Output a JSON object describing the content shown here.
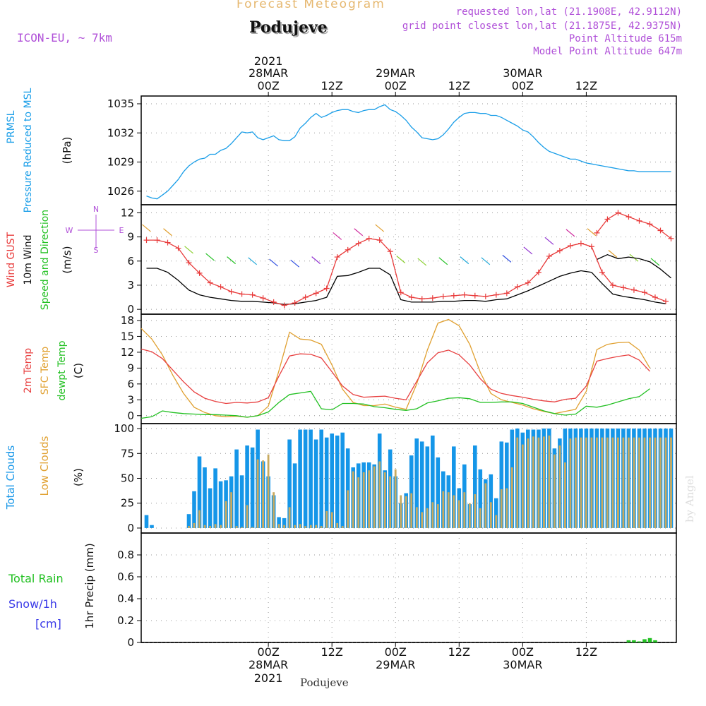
{
  "header": {
    "product": "Forecast Meteogram",
    "location": "Podujeve",
    "model": "ICON-EU, ~ 7km",
    "requested": "requested lon,lat (21.1908E, 42.9112N)",
    "grid_point": "grid point closest lon,lat (21.1875E, 42.9375N)",
    "point_altitude": "Point Altitude 615m",
    "model_altitude": "Model Point Altitude 647m",
    "watermark": "by Angel",
    "footer_location": "Podujeve"
  },
  "colors": {
    "pressure": "#1a9ee8",
    "gust": "#e83a3a",
    "wind": "#000000",
    "temp2m": "#e84040",
    "sfc": "#e0a030",
    "dewpt": "#22c022",
    "total_clouds": "#1596e8",
    "low_clouds": "#c8aa60",
    "rain": "#22c022",
    "snow": "#3a3ae8",
    "purple": "#b050d8"
  },
  "time_axis": {
    "top_ticks": [
      {
        "line1": "2021",
        "line2": "28MAR",
        "line3": "00Z",
        "h": 24
      },
      {
        "line1": "",
        "line2": "",
        "line3": "12Z",
        "h": 36
      },
      {
        "line1": "",
        "line2": "29MAR",
        "line3": "00Z",
        "h": 48
      },
      {
        "line1": "",
        "line2": "",
        "line3": "12Z",
        "h": 60
      },
      {
        "line1": "",
        "line2": "30MAR",
        "line3": "00Z",
        "h": 72
      },
      {
        "line1": "",
        "line2": "",
        "line3": "12Z",
        "h": 84
      }
    ],
    "bottom_ticks": [
      {
        "line1": "00Z",
        "line2": "28MAR",
        "line3": "2021",
        "h": 24
      },
      {
        "line1": "12Z",
        "line2": "",
        "line3": "",
        "h": 36
      },
      {
        "line1": "00Z",
        "line2": "29MAR",
        "line3": "",
        "h": 48
      },
      {
        "line1": "12Z",
        "line2": "",
        "line3": "",
        "h": 60
      },
      {
        "line1": "00Z",
        "line2": "30MAR",
        "line3": "",
        "h": 72
      },
      {
        "line1": "12Z",
        "line2": "",
        "line3": "",
        "h": 84
      }
    ]
  },
  "chart_data": [
    {
      "type": "line",
      "id": "pressure",
      "title": "PRMSL Pressure Reduced to MSL",
      "ylabel_lines": [
        "PRMSL",
        "Pressure Reduced to MSL"
      ],
      "unit": "(hPa)",
      "ylim": [
        1024.6,
        1035.8
      ],
      "yticks": [
        1026,
        1029,
        1032,
        1035
      ],
      "x": [
        1,
        2,
        3,
        4,
        5,
        6,
        7,
        8,
        9,
        10,
        11,
        12,
        13,
        14,
        15,
        16,
        17,
        18,
        19,
        20,
        21,
        22,
        23,
        24,
        25,
        26,
        27,
        28,
        29,
        30,
        31,
        32,
        33,
        34,
        35,
        36,
        37,
        38,
        39,
        40,
        41,
        42,
        43,
        44,
        45,
        46,
        47,
        48,
        49,
        50,
        51,
        52,
        53,
        54,
        55,
        56,
        57,
        58,
        59,
        60,
        61,
        62,
        63,
        64,
        65,
        66,
        67,
        68,
        69,
        70,
        71,
        72,
        73,
        74,
        75,
        76,
        77,
        78,
        79,
        80,
        81,
        82,
        83,
        84,
        85,
        86,
        87,
        88,
        89,
        90,
        91,
        92,
        93,
        94,
        95,
        96,
        97,
        98,
        99,
        100
      ],
      "series": [
        {
          "name": "PRMSL",
          "values": [
            1025.5,
            1025.3,
            1025.2,
            1025.6,
            1026.0,
            1026.6,
            1027.2,
            1028.0,
            1028.6,
            1029.0,
            1029.3,
            1029.4,
            1029.8,
            1029.8,
            1030.2,
            1030.4,
            1030.9,
            1031.5,
            1032.1,
            1032.0,
            1032.1,
            1031.5,
            1031.3,
            1031.5,
            1031.7,
            1031.3,
            1031.2,
            1031.2,
            1031.6,
            1032.5,
            1033.0,
            1033.6,
            1034.0,
            1033.6,
            1033.8,
            1034.1,
            1034.3,
            1034.4,
            1034.4,
            1034.2,
            1034.1,
            1034.3,
            1034.4,
            1034.4,
            1034.7,
            1034.9,
            1034.4,
            1034.2,
            1033.8,
            1033.3,
            1032.6,
            1032.1,
            1031.5,
            1031.4,
            1031.3,
            1031.4,
            1031.8,
            1032.4,
            1033.1,
            1033.6,
            1034.0,
            1034.1,
            1034.1,
            1034.0,
            1034.0,
            1033.8,
            1033.8,
            1033.6,
            1033.3,
            1033.0,
            1032.7,
            1032.3,
            1032.1,
            1031.6,
            1031.0,
            1030.5,
            1030.1,
            1029.9,
            1029.7,
            1029.5,
            1029.3,
            1029.3,
            1029.1,
            1028.9,
            1028.8,
            1028.7,
            1028.6,
            1028.5,
            1028.4,
            1028.3,
            1028.2,
            1028.1,
            1028.1,
            1028.0,
            1028.0,
            1028.0,
            1028.0,
            1028.0,
            1028.0,
            1028.0
          ]
        }
      ]
    },
    {
      "type": "line",
      "id": "wind",
      "title": "Wind GUST, 10m Wind Speed and Direction",
      "ylabel_lines": [
        "Wind GUST",
        "10m Wind",
        "Speed and Direction"
      ],
      "unit": "(m/s)",
      "compass": {
        "n": "N",
        "s": "S",
        "w": "W",
        "e": "E"
      },
      "ylim": [
        -0.6,
        13
      ],
      "yticks": [
        0,
        3,
        6,
        9,
        12
      ],
      "x": [
        1,
        3,
        5,
        7,
        9,
        11,
        13,
        15,
        17,
        19,
        21,
        23,
        25,
        27,
        29,
        31,
        33,
        35,
        37,
        39,
        41,
        43,
        45,
        47,
        49,
        51,
        53,
        55,
        57,
        59,
        61,
        63,
        65,
        67,
        69,
        71,
        73,
        75,
        77,
        79,
        81,
        83,
        85,
        87,
        89,
        91,
        93,
        95,
        97,
        99
      ],
      "series": [
        {
          "name": "Wind GUST",
          "values": [
            8.6,
            8.6,
            8.3,
            7.6,
            5.8,
            4.5,
            3.3,
            2.8,
            2.2,
            1.9,
            1.8,
            1.4,
            0.9,
            0.5,
            0.8,
            1.5,
            2.0,
            2.6,
            6.5,
            7.4,
            8.2,
            8.8,
            8.6,
            7.2,
            2.1,
            1.5,
            1.3,
            1.4,
            1.6,
            1.7,
            1.8,
            1.7,
            1.6,
            1.8,
            2.0,
            2.8,
            3.3,
            4.6,
            6.6,
            7.3,
            7.9,
            8.2,
            7.8,
            4.6,
            3.0,
            2.7,
            2.4,
            2.1,
            1.5,
            1.0
          ]
        },
        {
          "name": "10m Wind",
          "values": [
            5.1,
            5.1,
            4.6,
            3.6,
            2.4,
            1.8,
            1.5,
            1.3,
            1.1,
            1.0,
            1.0,
            0.9,
            0.8,
            0.6,
            0.7,
            0.9,
            1.1,
            1.5,
            4.1,
            4.2,
            4.6,
            5.1,
            5.1,
            4.3,
            1.2,
            0.9,
            0.9,
            0.9,
            1.0,
            1.0,
            1.1,
            1.1,
            1.0,
            1.2,
            1.3,
            1.8,
            2.3,
            2.9,
            3.5,
            4.1,
            4.5,
            4.8,
            4.6,
            3.2,
            1.9,
            1.6,
            1.4,
            1.2,
            0.9,
            0.7
          ]
        }
      ],
      "gust_tail": {
        "x": [
          86,
          88,
          90,
          92,
          94,
          96,
          98,
          100
        ],
        "values": [
          9.5,
          11.2,
          12.0,
          11.5,
          11.0,
          10.6,
          9.8,
          8.8
        ]
      },
      "wind_tail": {
        "x": [
          86,
          88,
          90,
          92,
          94,
          96,
          98,
          100
        ],
        "values": [
          6.2,
          6.8,
          6.3,
          6.5,
          6.3,
          5.9,
          5.0,
          3.9
        ]
      }
    },
    {
      "type": "line",
      "id": "temperature",
      "title": "2m Temp, SFC Temp, dewpt Temp",
      "ylabel_lines": [
        "2m Temp",
        "SFC Temp",
        "dewpt Temp"
      ],
      "unit": "(C)",
      "ylim": [
        -1.5,
        19.2
      ],
      "yticks": [
        0,
        3,
        6,
        9,
        12,
        15,
        18
      ],
      "x": [
        0,
        2,
        4,
        6,
        8,
        10,
        12,
        14,
        16,
        18,
        20,
        22,
        24,
        26,
        28,
        30,
        32,
        34,
        36,
        38,
        40,
        42,
        44,
        46,
        48,
        50,
        52,
        54,
        56,
        58,
        60,
        62,
        64,
        66,
        68,
        70,
        72,
        74,
        76,
        78,
        80,
        82,
        84,
        86,
        88,
        90,
        92,
        94,
        96
      ],
      "series": [
        {
          "name": "2m Temp",
          "values": [
            12.6,
            12.1,
            10.8,
            8.6,
            6.4,
            4.5,
            3.3,
            2.7,
            2.3,
            2.5,
            2.4,
            2.6,
            3.4,
            7.5,
            11.3,
            11.7,
            11.6,
            10.9,
            8.3,
            5.6,
            4.0,
            3.5,
            3.6,
            3.7,
            3.3,
            3.0,
            6.5,
            10.0,
            11.9,
            12.4,
            11.5,
            9.6,
            7.0,
            5.0,
            4.2,
            3.8,
            3.5,
            3.1,
            2.8,
            2.6,
            3.1,
            3.3,
            5.6,
            10.3,
            10.8,
            11.2,
            11.5,
            10.5,
            8.4
          ]
        },
        {
          "name": "SFC Temp",
          "values": [
            16.5,
            14.5,
            11.5,
            7.6,
            4.2,
            1.6,
            0.6,
            0.0,
            -0.2,
            -0.1,
            -0.3,
            0.0,
            1.8,
            8.5,
            15.8,
            14.5,
            14.3,
            13.5,
            9.6,
            5.0,
            2.5,
            1.9,
            1.9,
            2.2,
            1.6,
            1.2,
            6.0,
            12.4,
            17.5,
            18.2,
            17.0,
            13.5,
            8.2,
            4.2,
            3.0,
            2.5,
            2.0,
            1.3,
            0.8,
            0.4,
            0.8,
            1.2,
            4.6,
            12.5,
            13.5,
            13.8,
            13.9,
            12.4,
            9.0
          ]
        },
        {
          "name": "dewpt Temp",
          "values": [
            -0.5,
            -0.2,
            0.9,
            0.6,
            0.4,
            0.3,
            0.2,
            0.2,
            0.1,
            0.0,
            -0.3,
            0.0,
            0.7,
            2.5,
            4.0,
            4.3,
            4.6,
            1.3,
            1.1,
            2.3,
            2.3,
            2.2,
            1.7,
            1.5,
            1.2,
            1.0,
            1.3,
            2.4,
            2.8,
            3.3,
            3.4,
            3.2,
            2.5,
            2.5,
            2.6,
            2.6,
            2.3,
            1.6,
            0.9,
            0.4,
            0.1,
            0.3,
            1.8,
            1.6,
            2.0,
            2.6,
            3.2,
            3.6,
            5.1
          ]
        }
      ]
    },
    {
      "type": "bar",
      "id": "clouds",
      "title": "Total Clouds, Low Clouds",
      "ylabel_lines": [
        "Total Clouds",
        "Low Clouds"
      ],
      "unit": "(%)",
      "ylim": [
        -5,
        105
      ],
      "yticks": [
        0,
        25,
        50,
        75,
        100
      ],
      "x": [
        1,
        2,
        3,
        4,
        5,
        6,
        7,
        8,
        9,
        10,
        11,
        12,
        13,
        14,
        15,
        16,
        17,
        18,
        19,
        20,
        21,
        22,
        23,
        24,
        25,
        26,
        27,
        28,
        29,
        30,
        31,
        32,
        33,
        34,
        35,
        36,
        37,
        38,
        39,
        40,
        41,
        42,
        43,
        44,
        45,
        46,
        47,
        48,
        49,
        50,
        51,
        52,
        53,
        54,
        55,
        56,
        57,
        58,
        59,
        60,
        61,
        62,
        63,
        64,
        65,
        66,
        67,
        68,
        69,
        70,
        71,
        72,
        73,
        74,
        75,
        76,
        77,
        78,
        79,
        80,
        81,
        82,
        83,
        84,
        85,
        86,
        87,
        88,
        89,
        90,
        91,
        92,
        93,
        94,
        95,
        96,
        97,
        98,
        99,
        100
      ],
      "series": [
        {
          "name": "Total Clouds",
          "values": [
            13,
            3,
            0,
            0,
            0,
            0,
            0,
            0,
            14,
            37,
            72,
            61,
            40,
            60,
            47,
            48,
            52,
            79,
            53,
            83,
            81,
            99,
            67,
            52,
            33,
            11,
            10,
            89,
            65,
            99,
            99,
            99,
            89,
            99,
            91,
            95,
            93,
            96,
            80,
            61,
            65,
            66,
            66,
            64,
            95,
            58,
            79,
            52,
            25,
            35,
            73,
            90,
            87,
            82,
            93,
            71,
            57,
            53,
            82,
            40,
            64,
            24,
            83,
            59,
            49,
            54,
            30,
            87,
            86,
            99,
            100,
            96,
            99,
            99,
            99,
            100,
            100,
            80,
            90,
            100,
            100,
            100,
            100,
            100,
            100,
            100,
            100,
            100,
            100,
            100,
            100,
            100,
            100,
            100,
            100,
            100,
            100,
            100,
            100,
            100
          ]
        },
        {
          "name": "Low Clouds",
          "values": [
            0,
            0,
            0,
            0,
            0,
            0,
            0,
            0,
            2,
            5,
            18,
            3,
            2,
            4,
            3,
            27,
            36,
            2,
            1,
            23,
            1,
            69,
            68,
            74,
            36,
            4,
            3,
            21,
            3,
            4,
            2,
            3,
            3,
            2,
            17,
            16,
            5,
            2,
            38,
            57,
            51,
            56,
            58,
            62,
            67,
            56,
            52,
            59,
            33,
            32,
            35,
            21,
            16,
            20,
            26,
            24,
            37,
            36,
            33,
            28,
            36,
            25,
            34,
            20,
            45,
            26,
            13,
            39,
            40,
            61,
            91,
            84,
            90,
            92,
            91,
            92,
            93,
            74,
            83,
            66,
            90,
            91,
            91,
            91,
            91,
            91,
            91,
            91,
            91,
            91,
            91,
            91,
            91,
            91,
            91,
            91,
            91,
            91,
            91,
            91
          ]
        }
      ]
    },
    {
      "type": "bar",
      "id": "precip",
      "title": "1hr Precip (mm)",
      "ylabel_lines": [
        "Total  Rain",
        "Snow/1h",
        "[cm]"
      ],
      "unit": "1hr Precip (mm)",
      "ylim": [
        0,
        1.0
      ],
      "yticks": [
        0,
        0.2,
        0.4,
        0.6,
        0.8
      ],
      "ytick_labels": [
        "0",
        "0.2",
        "0.4",
        "0.6",
        "0.8"
      ],
      "series": [
        {
          "name": "Total Rain",
          "x": [
            92,
            93,
            94,
            95,
            96,
            97
          ],
          "values": [
            0.02,
            0.02,
            0.01,
            0.03,
            0.04,
            0.02
          ]
        }
      ]
    }
  ]
}
